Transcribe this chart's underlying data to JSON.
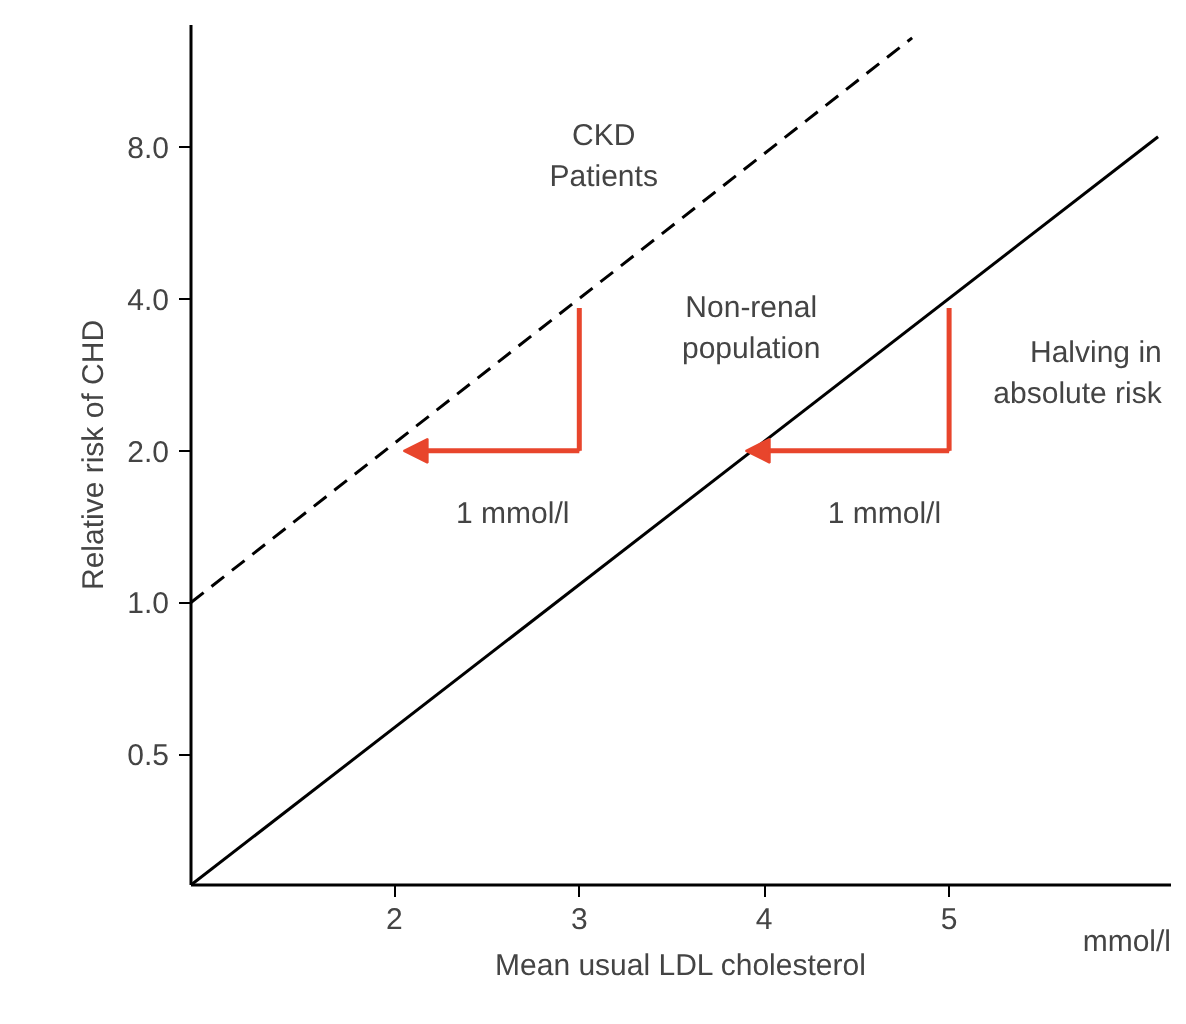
{
  "chart_data": {
    "type": "line",
    "xlabel": "Mean usual LDL cholesterol",
    "ylabel": "Relative risk of CHD",
    "log": "y",
    "xlim": [
      0.9,
      6.2
    ],
    "ylim": [
      0.275,
      14
    ],
    "xticks": [
      2,
      3,
      4,
      5
    ],
    "yticks": [
      {
        "value": 0.5,
        "label": "0.5"
      },
      {
        "value": 1,
        "label": "1.0"
      },
      {
        "value": 2,
        "label": "2.0"
      },
      {
        "value": 4,
        "label": "4.0"
      },
      {
        "value": 8,
        "label": "8.0"
      }
    ],
    "grid": false,
    "legend": false,
    "series": [
      {
        "name": "CKD Patients",
        "color": "#000000",
        "line_style": "dashed",
        "x": [
          0.9,
          4.8
        ],
        "values": [
          1.0,
          13.2
        ]
      },
      {
        "name": "Non-renal population",
        "color": "#000000",
        "line_style": "solid",
        "x": [
          0.9,
          6.13
        ],
        "values": [
          0.275,
          8.4
        ]
      }
    ],
    "annotations": [
      "1 mmol/l",
      "1 mmol/l",
      "Halving in absolute risk",
      "mmol/l"
    ]
  }
}
